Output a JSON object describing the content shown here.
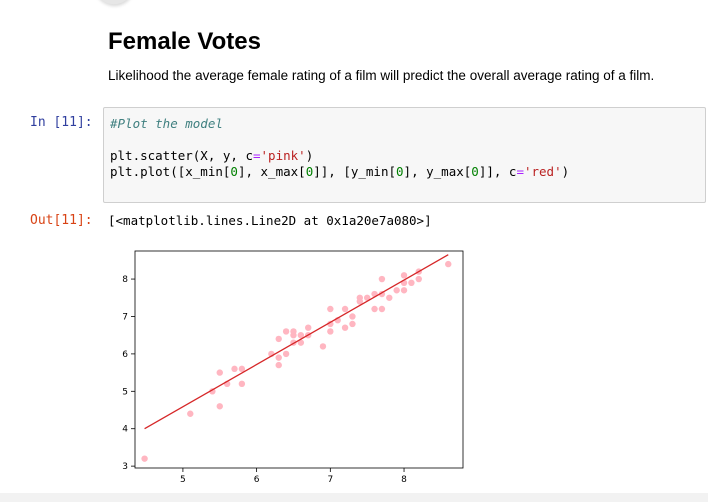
{
  "notebook": {
    "markdown": {
      "title": "Female Votes",
      "text": "Likelihood the average female rating of a film will predict the overall average rating of a film."
    },
    "cell": {
      "in_prompt": "In [11]:",
      "code_comment": "#Plot the model",
      "code_line2": {
        "a": "plt.scatter(X, y, c",
        "op": "=",
        "str": "'pink'",
        "b": ")"
      },
      "code_line3": {
        "p1": "plt.plot([x_min[",
        "n1": "0",
        "p2": "], x_max[",
        "n2": "0",
        "p3": "]], [y_min[",
        "n3": "0",
        "p4": "], y_max[",
        "n4": "0",
        "p5": "]], c",
        "op": "=",
        "str": "'red'",
        "p6": ")"
      },
      "out_prompt": "Out[11]:",
      "output_text": "[<matplotlib.lines.Line2D at 0x1a20e7a080>]"
    }
  },
  "chart_data": {
    "type": "scatter",
    "title": "",
    "xlabel": "",
    "ylabel": "",
    "xlim": [
      4.35,
      8.8
    ],
    "ylim": [
      2.95,
      8.75
    ],
    "x_ticks": [
      5,
      6,
      7,
      8
    ],
    "y_ticks": [
      3,
      4,
      5,
      6,
      7,
      8
    ],
    "grid": false,
    "colors": {
      "points": "#ffb6c1",
      "line": "#d62728"
    },
    "points": [
      [
        4.48,
        3.2
      ],
      [
        5.1,
        4.4
      ],
      [
        5.4,
        5.0
      ],
      [
        5.5,
        4.6
      ],
      [
        5.5,
        5.5
      ],
      [
        5.6,
        5.2
      ],
      [
        5.7,
        5.6
      ],
      [
        5.8,
        5.2
      ],
      [
        5.8,
        5.6
      ],
      [
        6.2,
        6.0
      ],
      [
        6.3,
        5.9
      ],
      [
        6.3,
        5.7
      ],
      [
        6.3,
        6.4
      ],
      [
        6.4,
        6.0
      ],
      [
        6.4,
        6.6
      ],
      [
        6.5,
        6.6
      ],
      [
        6.5,
        6.5
      ],
      [
        6.5,
        6.3
      ],
      [
        6.6,
        6.5
      ],
      [
        6.6,
        6.3
      ],
      [
        6.7,
        6.7
      ],
      [
        6.7,
        6.5
      ],
      [
        6.9,
        6.2
      ],
      [
        7.0,
        6.6
      ],
      [
        7.0,
        6.8
      ],
      [
        7.0,
        7.2
      ],
      [
        7.1,
        6.9
      ],
      [
        7.2,
        7.2
      ],
      [
        7.2,
        6.7
      ],
      [
        7.3,
        6.8
      ],
      [
        7.3,
        7.0
      ],
      [
        7.4,
        7.5
      ],
      [
        7.4,
        7.4
      ],
      [
        7.5,
        7.5
      ],
      [
        7.6,
        7.6
      ],
      [
        7.6,
        7.2
      ],
      [
        7.7,
        7.2
      ],
      [
        7.7,
        7.6
      ],
      [
        7.7,
        8.0
      ],
      [
        7.8,
        7.5
      ],
      [
        7.9,
        7.7
      ],
      [
        8.0,
        7.7
      ],
      [
        8.0,
        8.1
      ],
      [
        8.0,
        7.9
      ],
      [
        8.1,
        7.9
      ],
      [
        8.2,
        8.0
      ],
      [
        8.2,
        8.2
      ],
      [
        8.6,
        8.4
      ]
    ],
    "line": {
      "x": [
        4.48,
        8.6
      ],
      "y": [
        4.0,
        8.65
      ]
    }
  }
}
